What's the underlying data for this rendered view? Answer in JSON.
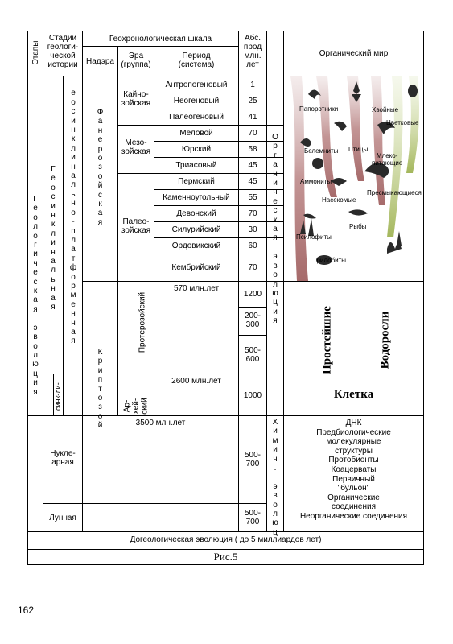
{
  "header": {
    "stages": "Этапы",
    "history": "Стадии\nгеологи-\nческой\nистории",
    "geoscale": "Геохронологическая шкала",
    "abs": "Абс.\nпрод\nмлн.\nлет",
    "organic": "Органический мир",
    "nadera": "Надэра",
    "era": "Эра\n(группа)",
    "period": "Период\n(система)"
  },
  "columns": {
    "etapy_vertical": "Геологическая эволюция",
    "stadii_outer": "Геосинклинальная",
    "stadii_inner": "Геосинклинально-платформенная",
    "phanerozoic": "Фанерозойская",
    "cryptozoic": "Криптозой",
    "protokin": "синк-ли-",
    "organic_evolution": "Органическая эволюция",
    "chemical_evolution": "Химич. эволюц."
  },
  "eras": {
    "cenozoic": "Кайно-\nзойская",
    "mesozoic": "Мезо-\nзойская",
    "paleozoic": "Палео-\nзойская",
    "proterozoic": "Протерозойский",
    "archean": "Ар-\nхей-\nский"
  },
  "periods": [
    {
      "name": "Антропогеновый",
      "abs": "1"
    },
    {
      "name": "Неогеновый",
      "abs": "25"
    },
    {
      "name": "Палеогеновый",
      "abs": "41"
    },
    {
      "name": "Меловой",
      "abs": "70"
    },
    {
      "name": "Юрский",
      "abs": "58"
    },
    {
      "name": "Триасовый",
      "abs": "45"
    },
    {
      "name": "Пермский",
      "abs": "45"
    },
    {
      "name": "Каменноугольный",
      "abs": "55"
    },
    {
      "name": "Девонский",
      "abs": "70"
    },
    {
      "name": "Силурийский",
      "abs": "30"
    },
    {
      "name": "Ордовикский",
      "abs": "60"
    },
    {
      "name": "Кембрийский",
      "abs": "70"
    }
  ],
  "ages": {
    "m570": "570 млн.лет",
    "m2600": "2600 млн.лет",
    "m3500": "3500 млн.лет"
  },
  "proterozoic_abs": [
    "1200",
    "200-\n300",
    "500-\n600"
  ],
  "archean_abs": "1000",
  "nuclear": {
    "label": "Нукле-\nарная",
    "abs": "500-\n700"
  },
  "lunar": {
    "label": "Лунная",
    "abs": "500-\n700"
  },
  "organisms": {
    "ferns": "Папоротники",
    "conifers": "Хвойные",
    "flowering": "Цветковые",
    "mammals": "Млеко-\nпитающие",
    "belemnites": "Белемниты",
    "birds": "Птицы",
    "ammonites": "Аммониты",
    "insects": "Насекомые",
    "reptiles": "Пресмыкающиеся",
    "fish": "Рыбы",
    "psilophytes": "Псилофиты",
    "trilobites": "Трилобиты"
  },
  "protists": "Простейшие",
  "algae": "Водоросли",
  "cell": "Клетка",
  "chemistry_list": "ДНК\nПредбиологические\nмолекулярные\nструктуры\nПротобионты\nКоацерваты\nПервичный\n\"бульон\"\nОрганические\nсоединения\nНеорганические соединения",
  "pregeological": "Догеологическая эволюция ( до 5 миллиардов лет)",
  "caption": "Рис.5",
  "page_number": "162"
}
